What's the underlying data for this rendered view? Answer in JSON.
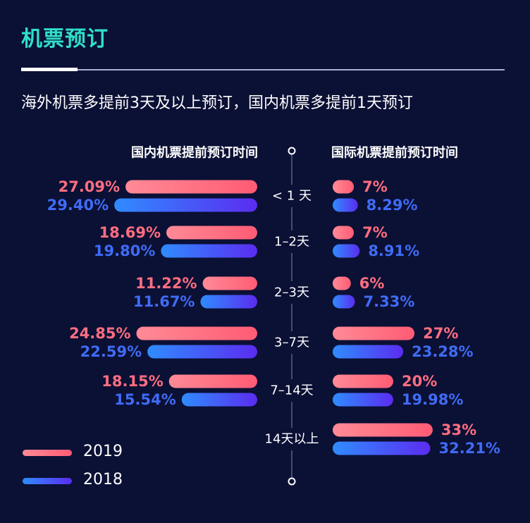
{
  "header": {
    "title": "机票预订",
    "subtitle": "海外机票多提前3天及以上预订，国内机票多提前1天预订"
  },
  "legend": [
    {
      "label": "2019",
      "color": "#ff6e80"
    },
    {
      "label": "2018",
      "color": "#3f6cf5"
    }
  ],
  "colors": {
    "series_2019": "#ff6e80",
    "series_2018": "#3f6cf5",
    "title": "#2fe0c8",
    "background": "#0b1035"
  },
  "chart_data": [
    {
      "type": "bar",
      "orientation": "horizontal",
      "title": "国内机票提前预订时间",
      "categories": [
        "< 1 天",
        "1–2天",
        "2–3天",
        "3–7天",
        "7–14天"
      ],
      "series": [
        {
          "name": "2019",
          "values": [
            27.09,
            18.69,
            11.22,
            24.85,
            18.15
          ],
          "labels": [
            "27.09%",
            "18.69%",
            "11.22%",
            "24.85%",
            "18.15%"
          ]
        },
        {
          "name": "2018",
          "values": [
            29.4,
            19.8,
            11.67,
            22.59,
            15.54
          ],
          "labels": [
            "29.40%",
            "19.80%",
            "11.67%",
            "22.59%",
            "15.54%"
          ]
        }
      ]
    },
    {
      "type": "bar",
      "orientation": "horizontal",
      "title": "国际机票提前预订时间",
      "categories": [
        "< 1 天",
        "1–2天",
        "2–3天",
        "3–7天",
        "7–14天",
        "14天以上"
      ],
      "series": [
        {
          "name": "2019",
          "values": [
            7,
            7,
            6,
            27,
            20,
            33
          ],
          "labels": [
            "7%",
            "7%",
            "6%",
            "27%",
            "20%",
            "33%"
          ]
        },
        {
          "name": "2018",
          "values": [
            8.29,
            8.91,
            7.33,
            23.28,
            19.98,
            32.21
          ],
          "labels": [
            "8.29%",
            "8.91%",
            "7.33%",
            "23.28%",
            "19.98%",
            "32.21%"
          ]
        }
      ]
    }
  ]
}
